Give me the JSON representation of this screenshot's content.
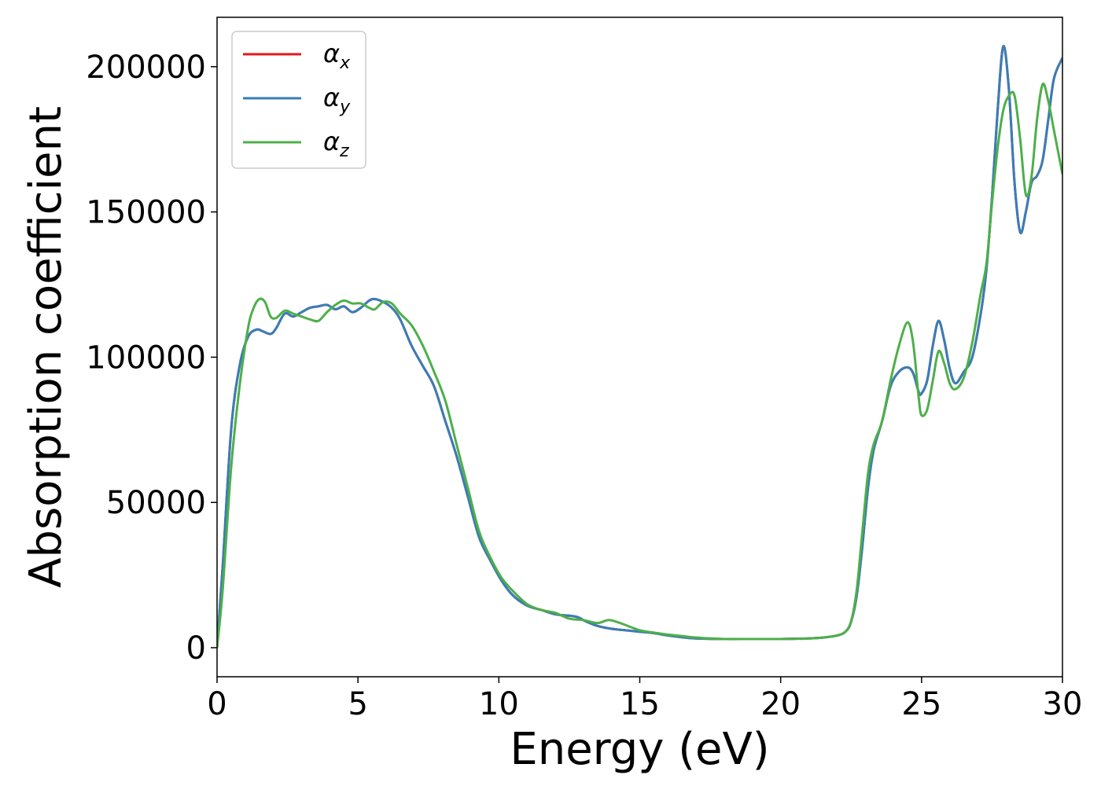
{
  "chart_data": {
    "type": "line",
    "title": "",
    "xlabel": "Energy (eV)",
    "ylabel": "Absorption coefficient",
    "xlim": [
      0,
      30
    ],
    "ylim": [
      -10000,
      217000
    ],
    "xticks": [
      0,
      5,
      10,
      15,
      20,
      25,
      30
    ],
    "xtick_labels": [
      "0",
      "5",
      "10",
      "15",
      "20",
      "25",
      "30"
    ],
    "yticks": [
      0,
      50000,
      100000,
      150000,
      200000
    ],
    "ytick_labels": [
      "0",
      "50000",
      "100000",
      "150000",
      "200000"
    ],
    "grid": false,
    "legend_position": "top-left",
    "series": [
      {
        "name": "αx",
        "legend_base": "α",
        "legend_sub": "x",
        "color": "#e41a1c",
        "x": [
          0,
          0.2,
          0.5,
          0.8,
          1.1,
          1.4,
          1.6,
          1.9,
          2.1,
          2.4,
          2.7,
          3.0,
          3.3,
          3.6,
          3.9,
          4.2,
          4.5,
          4.8,
          5.1,
          5.4,
          5.6,
          5.9,
          6.2,
          6.5,
          6.9,
          7.3,
          7.7,
          8.1,
          8.5,
          8.9,
          9.3,
          9.7,
          10.1,
          10.5,
          11.0,
          11.5,
          12.0,
          12.5,
          12.8,
          13.1,
          13.5,
          14.0,
          14.5,
          15.0,
          15.5,
          16.0,
          16.5,
          17.0,
          18.0,
          19.0,
          20.0,
          21.0,
          21.5,
          22.0,
          22.3,
          22.5,
          22.7,
          22.9,
          23.1,
          23.3,
          23.6,
          23.9,
          24.2,
          24.5,
          24.7,
          24.9,
          25.0,
          25.2,
          25.4,
          25.6,
          25.8,
          26.0,
          26.2,
          26.5,
          26.8,
          27.1,
          27.3,
          27.5,
          27.7,
          27.9,
          28.1,
          28.3,
          28.5,
          28.7,
          28.9,
          29.1,
          29.3,
          29.5,
          29.7,
          30.0
        ],
        "y": [
          0,
          28000,
          75000,
          97000,
          107000,
          109500,
          109000,
          108000,
          110000,
          115000,
          114000,
          115500,
          117000,
          117500,
          118000,
          116500,
          117500,
          115500,
          117000,
          119500,
          120000,
          119000,
          117000,
          113000,
          104000,
          97000,
          90000,
          78000,
          66000,
          52000,
          38000,
          30000,
          23000,
          18000,
          14500,
          13000,
          11500,
          11000,
          10500,
          9000,
          7500,
          6500,
          6000,
          5500,
          5000,
          4200,
          3600,
          3200,
          3000,
          3000,
          3000,
          3200,
          3500,
          4200,
          5500,
          9000,
          18000,
          35000,
          55000,
          68000,
          78000,
          90000,
          95000,
          96500,
          94500,
          88000,
          87500,
          92000,
          104000,
          112500,
          106000,
          96000,
          91000,
          95000,
          100000,
          115000,
          130000,
          155000,
          185000,
          207000,
          192000,
          160000,
          143000,
          150000,
          160000,
          162500,
          168000,
          182000,
          196000,
          203000
        ]
      },
      {
        "name": "αy",
        "legend_base": "α",
        "legend_sub": "y",
        "color": "#377eb8",
        "x": [
          0,
          0.2,
          0.5,
          0.8,
          1.1,
          1.4,
          1.6,
          1.9,
          2.1,
          2.4,
          2.7,
          3.0,
          3.3,
          3.6,
          3.9,
          4.2,
          4.5,
          4.8,
          5.1,
          5.4,
          5.6,
          5.9,
          6.2,
          6.5,
          6.9,
          7.3,
          7.7,
          8.1,
          8.5,
          8.9,
          9.3,
          9.7,
          10.1,
          10.5,
          11.0,
          11.5,
          12.0,
          12.5,
          12.8,
          13.1,
          13.5,
          14.0,
          14.5,
          15.0,
          15.5,
          16.0,
          16.5,
          17.0,
          18.0,
          19.0,
          20.0,
          21.0,
          21.5,
          22.0,
          22.3,
          22.5,
          22.7,
          22.9,
          23.1,
          23.3,
          23.6,
          23.9,
          24.2,
          24.5,
          24.7,
          24.9,
          25.0,
          25.2,
          25.4,
          25.6,
          25.8,
          26.0,
          26.2,
          26.5,
          26.8,
          27.1,
          27.3,
          27.5,
          27.7,
          27.9,
          28.1,
          28.3,
          28.5,
          28.7,
          28.9,
          29.1,
          29.3,
          29.5,
          29.7,
          30.0
        ],
        "y": [
          0,
          28000,
          75000,
          97000,
          107000,
          109500,
          109000,
          108000,
          110000,
          115000,
          114000,
          115500,
          117000,
          117500,
          118000,
          116500,
          117500,
          115500,
          117000,
          119500,
          120000,
          119000,
          117000,
          113000,
          104000,
          97000,
          90000,
          78000,
          66000,
          52000,
          38000,
          30000,
          23000,
          18000,
          14500,
          13000,
          11500,
          11000,
          10500,
          9000,
          7500,
          6500,
          6000,
          5500,
          5000,
          4200,
          3600,
          3200,
          3000,
          3000,
          3000,
          3200,
          3500,
          4200,
          5500,
          9000,
          18000,
          35000,
          55000,
          68000,
          78000,
          90000,
          95000,
          96500,
          94500,
          88000,
          87500,
          92000,
          104000,
          112500,
          106000,
          96000,
          91000,
          95000,
          100000,
          115000,
          130000,
          155000,
          185000,
          207000,
          192000,
          160000,
          143000,
          150000,
          160000,
          162500,
          168000,
          182000,
          196000,
          203000
        ]
      },
      {
        "name": "αz",
        "legend_base": "α",
        "legend_sub": "z",
        "color": "#4daf4a",
        "x": [
          0,
          0.2,
          0.5,
          0.8,
          1.1,
          1.3,
          1.5,
          1.7,
          1.9,
          2.1,
          2.4,
          2.7,
          3.0,
          3.3,
          3.6,
          3.9,
          4.2,
          4.5,
          4.8,
          5.1,
          5.4,
          5.6,
          5.9,
          6.2,
          6.5,
          6.9,
          7.3,
          7.7,
          8.1,
          8.5,
          8.9,
          9.3,
          9.7,
          10.1,
          10.5,
          11.0,
          11.5,
          12.0,
          12.5,
          13.0,
          13.5,
          13.9,
          14.3,
          15.0,
          15.5,
          16.0,
          16.5,
          17.0,
          18.0,
          19.0,
          20.0,
          21.0,
          21.5,
          22.0,
          22.3,
          22.5,
          22.7,
          22.9,
          23.1,
          23.3,
          23.6,
          23.9,
          24.2,
          24.5,
          24.7,
          24.9,
          25.0,
          25.2,
          25.4,
          25.6,
          25.8,
          26.0,
          26.2,
          26.5,
          26.8,
          27.1,
          27.3,
          27.5,
          27.7,
          27.9,
          28.1,
          28.3,
          28.5,
          28.7,
          28.9,
          29.1,
          29.3,
          29.5,
          29.7,
          30.0
        ],
        "y": [
          0,
          20000,
          62000,
          90000,
          110000,
          117000,
          120000,
          119000,
          114000,
          113500,
          116000,
          115000,
          114000,
          113000,
          112500,
          115500,
          118000,
          119500,
          118500,
          118500,
          117000,
          116500,
          119000,
          118500,
          115000,
          111000,
          104000,
          95000,
          85000,
          70000,
          55000,
          40000,
          31000,
          24000,
          19500,
          15000,
          13000,
          12000,
          10000,
          9500,
          8500,
          9500,
          8500,
          6000,
          5200,
          4500,
          4000,
          3500,
          3000,
          3000,
          3000,
          3200,
          3500,
          4200,
          5500,
          9000,
          20000,
          40000,
          60000,
          70000,
          78000,
          92000,
          104000,
          112000,
          105000,
          86000,
          80000,
          82000,
          92000,
          102000,
          98000,
          91000,
          89000,
          93000,
          105000,
          122000,
          132000,
          153000,
          172000,
          185000,
          190000,
          190000,
          175000,
          156000,
          162000,
          182000,
          194000,
          188000,
          178000,
          163000
        ]
      }
    ]
  }
}
